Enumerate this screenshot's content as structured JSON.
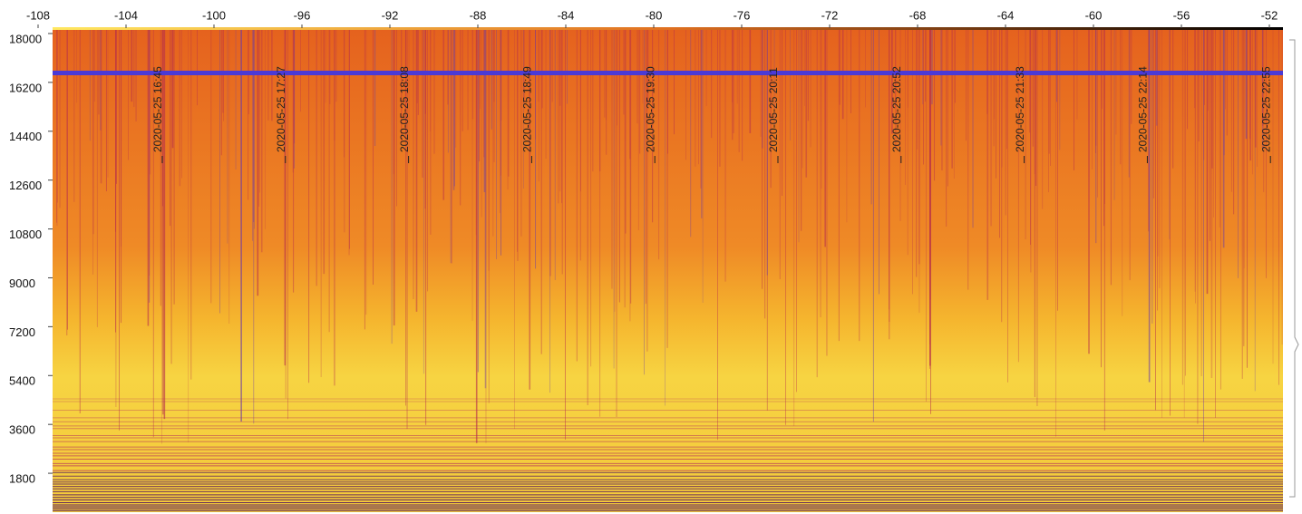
{
  "chart_data": {
    "type": "spectrogram",
    "xlim": [
      -108,
      -52
    ],
    "xticks": [
      -108,
      -104,
      -100,
      -96,
      -92,
      -88,
      -84,
      -80,
      -76,
      -72,
      -68,
      -64,
      -60,
      -56,
      -52
    ],
    "ylim": [
      600,
      18400
    ],
    "yticks": [
      1800,
      3600,
      5400,
      7200,
      9000,
      10800,
      12600,
      14400,
      16200,
      18000
    ],
    "annotations": [
      "2020-05-25 16:45",
      "2020-05-25 17:27",
      "2020-05-25 18:08",
      "2020-05-25 18:49",
      "2020-05-25 19:30",
      "2020-05-25 20:11",
      "2020-05-25 20:52",
      "2020-05-25 21:33",
      "2020-05-25 22:14",
      "2020-05-25 22:55"
    ]
  }
}
